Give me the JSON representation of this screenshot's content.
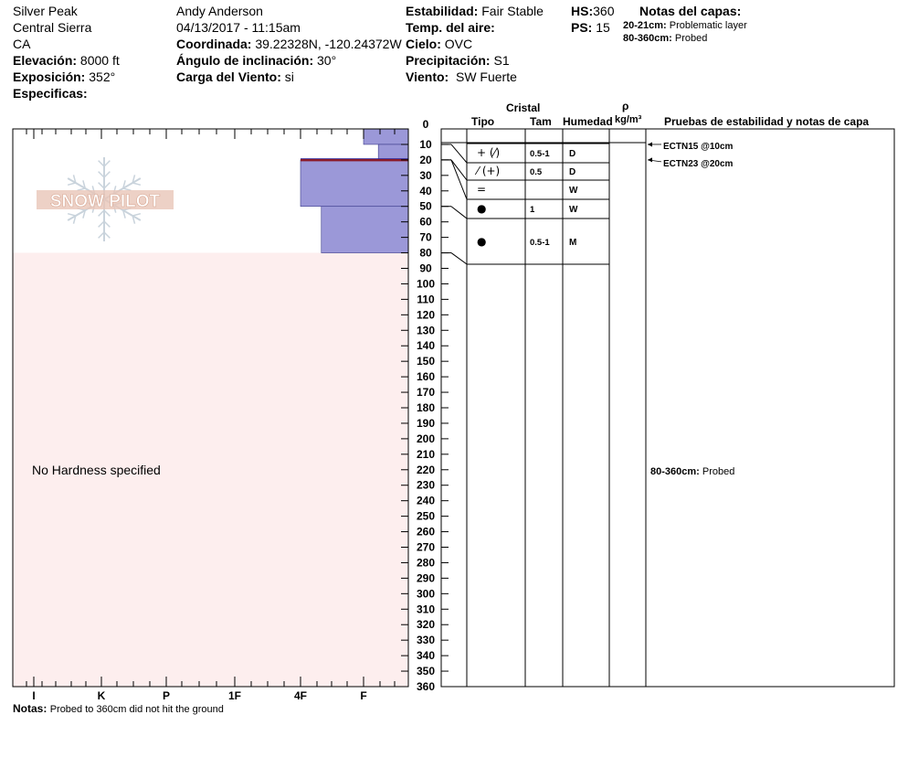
{
  "header": {
    "location": "Silver Peak",
    "range": "Central Sierra",
    "state": "CA",
    "elevation_label": "Elevación:",
    "elevation_value": "8000 ft",
    "aspect_label": "Exposición:",
    "aspect_value": "352°",
    "specifics_label": "Especificas:",
    "observer": "Andy Anderson",
    "datetime": "04/13/2017 - 11:15am",
    "coord_label": "Coordinada:",
    "coord_value": "39.22328N, -120.24372W",
    "incline_label": "Ángulo de inclinación:",
    "incline_value": "30°",
    "wind_load_label": "Carga del Viento:",
    "wind_load_value": "si",
    "stability_label": "Estabilidad:",
    "stability_value": "Fair Stable",
    "air_temp_label": "Temp. del aire:",
    "sky_label": "Cielo:",
    "sky_value": "OVC",
    "precip_label": "Precipitación:",
    "precip_value": "S1",
    "wind_label": "Viento:",
    "wind_value": "SW Fuerte",
    "hs_label": "HS:",
    "hs_value": "360",
    "ps_label": "PS:",
    "ps_value": "15",
    "layer_notes_label": "Notas del capas:",
    "layer_notes": [
      {
        "range": "20-21cm:",
        "text": "Problematic layer"
      },
      {
        "range": "80-360cm:",
        "text": "Probed"
      }
    ]
  },
  "columns": {
    "crystal": "Cristal",
    "type": "Tipo",
    "size": "Tam",
    "moisture": "Humedad",
    "rho": "ρ",
    "density_unit": "kg/m³",
    "tests": "Pruebas de estabilidad y notas de capa"
  },
  "footer": {
    "notes_label": "Notas:",
    "notes_text": "Probed to 360cm did not hit the ground"
  },
  "watermark": "SNOW PILOT",
  "no_hardness": "No Hardness specified",
  "colors": {
    "hardness_fill": "#9b98d8",
    "probed_fill": "#fdeeee",
    "problem_line": "#8b1a2a",
    "watermark": "#e9c6b8"
  },
  "chart_data": {
    "type": "snow-profile",
    "depth_axis": {
      "min": 0,
      "max": 360,
      "step": 10,
      "unit": "cm"
    },
    "hardness_axis": {
      "labels": [
        "I",
        "K",
        "P",
        "1F",
        "4F",
        "F"
      ]
    },
    "hardness_layers": [
      {
        "top": 0,
        "bottom": 10,
        "hardness": "F"
      },
      {
        "top": 10,
        "bottom": 20,
        "hardness": "F-"
      },
      {
        "top": 20,
        "bottom": 50,
        "hardness": "4F"
      },
      {
        "top": 50,
        "bottom": 80,
        "hardness": "4F-"
      }
    ],
    "problem_layer": {
      "top": 20,
      "bottom": 21
    },
    "probed_zone": {
      "top": 80,
      "bottom": 360
    },
    "layers": [
      {
        "top": 0,
        "bottom": 10,
        "type": "",
        "size": "",
        "moisture": ""
      },
      {
        "top": 10,
        "bottom": 20,
        "type": "+ (⁄)",
        "size": "0.5-1",
        "moisture": "D"
      },
      {
        "top": 20,
        "bottom": 30,
        "type": "⁄ (+)",
        "size": "0.5",
        "moisture": "D"
      },
      {
        "top": 30,
        "bottom": 40,
        "type": "=",
        "size": "",
        "moisture": "W"
      },
      {
        "top": 40,
        "bottom": 50,
        "type": "●",
        "size": "1",
        "moisture": "W"
      },
      {
        "top": 50,
        "bottom": 80,
        "type": "●",
        "size": "0.5-1",
        "moisture": "M"
      }
    ],
    "tests": [
      {
        "depth": 10,
        "text": "ECTN15 @10cm"
      },
      {
        "depth": 20,
        "text": "ECTN23 @20cm"
      }
    ],
    "range_note": {
      "depth": 220,
      "range": "80-360cm:",
      "text": "Probed"
    }
  }
}
